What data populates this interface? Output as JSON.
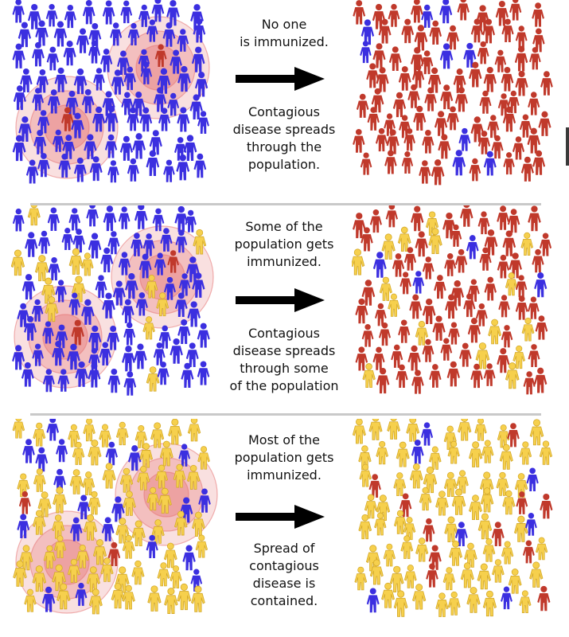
{
  "rows": [
    {
      "before_text": "No one\nis immunized.",
      "after_text": "Contagious\ndisease spreads\nthrough the\npopulation.",
      "immunized_fraction": 0.0
    },
    {
      "before_text": "Some of the\npopulation gets\nimmunized.",
      "after_text": "Contagious\ndisease spreads\nthrough some\nof the population",
      "immunized_fraction": 0.15
    },
    {
      "before_text": "Most of the\npopulation gets\nimmunized.",
      "after_text": "Spread of\ncontagious\ndisease is\ncontained.",
      "immunized_fraction": 0.85
    }
  ],
  "colors": {
    "healthy_unimmunized": "#3b2fe0",
    "sick": "#c0392b",
    "immunized": "#f6d04d",
    "immunized_outline": "#d4a92a",
    "infection_ring": "#e57373",
    "arrow": "#000000",
    "divider": "#c9c9c9"
  },
  "icons": {
    "person": "person-icon",
    "arrow": "right-arrow-icon",
    "infection_zone": "infection-ring-icon"
  }
}
